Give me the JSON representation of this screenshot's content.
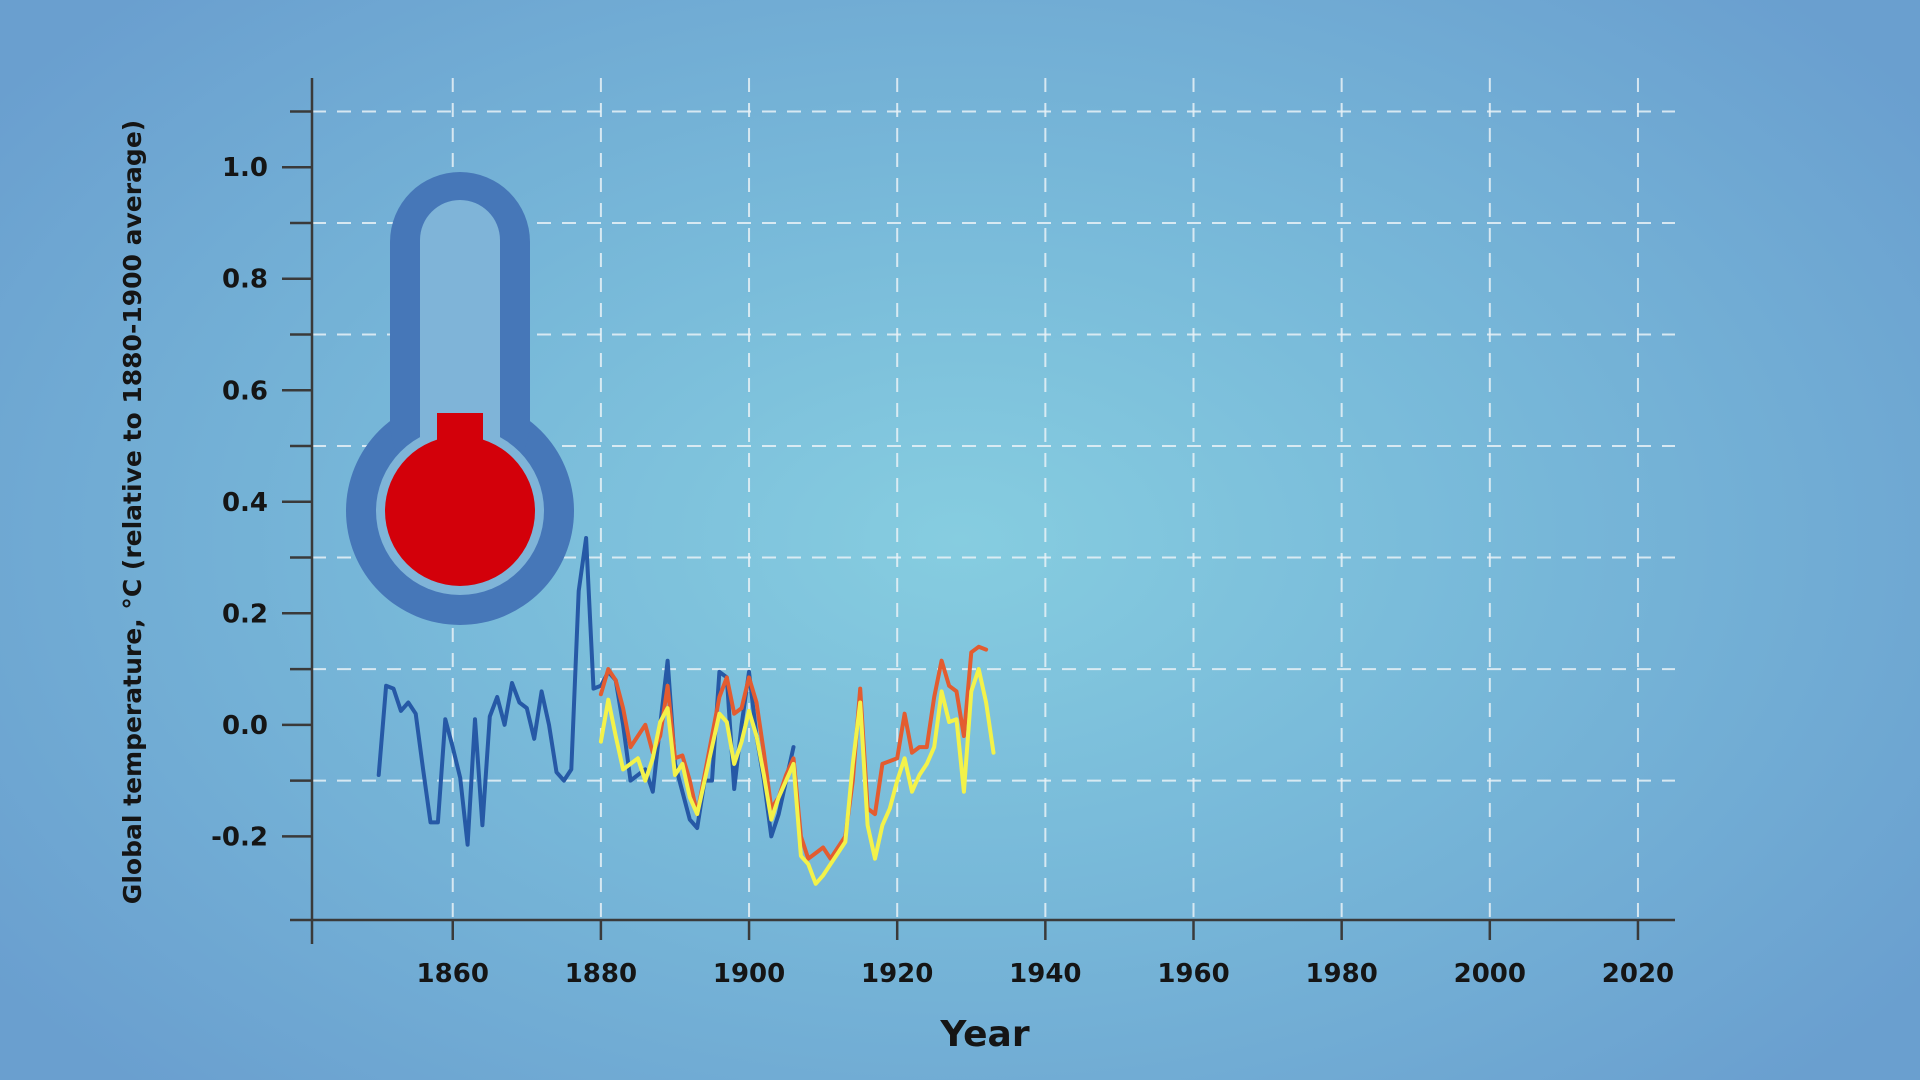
{
  "chart_data": {
    "type": "line",
    "title": "",
    "xlabel": "Year",
    "ylabel": "Global temperature, °C (relative to 1880-1900 average)",
    "xlim": [
      1841,
      2025
    ],
    "ylim": [
      -0.35,
      1.16
    ],
    "x_ticks": [
      1860,
      1880,
      1900,
      1920,
      1940,
      1960,
      1980,
      2000,
      2020
    ],
    "x_tick_labels": [
      "1860",
      "1880",
      "1900",
      "1920",
      "1940",
      "1960",
      "1980",
      "2000",
      "2020"
    ],
    "y_ticks": [
      -0.2,
      0.0,
      0.2,
      0.4,
      0.6,
      0.8,
      1.0
    ],
    "y_tick_labels": [
      "-0.2",
      "0.0",
      "0.2",
      "0.4",
      "0.6",
      "0.8",
      "1.0"
    ],
    "y_minor_ticks": [
      -0.1,
      0.1,
      0.3,
      0.5,
      0.7,
      0.9,
      1.1
    ],
    "grid": true,
    "series": [
      {
        "color": "#2659a6",
        "x": [
          1850,
          1851,
          1852,
          1853,
          1854,
          1855,
          1856,
          1857,
          1858,
          1859,
          1860,
          1861,
          1862,
          1863,
          1864,
          1865,
          1866,
          1867,
          1868,
          1869,
          1870,
          1871,
          1872,
          1873,
          1874,
          1875,
          1876,
          1877,
          1878,
          1879,
          1880,
          1881,
          1882,
          1883,
          1884,
          1885,
          1886,
          1887,
          1888,
          1889,
          1890,
          1891,
          1892,
          1893,
          1894,
          1895,
          1896,
          1897,
          1898,
          1899,
          1900,
          1901,
          1902,
          1903,
          1904,
          1905,
          1906
        ],
        "values": [
          -0.09,
          0.07,
          0.065,
          0.025,
          0.04,
          0.02,
          -0.08,
          -0.175,
          -0.175,
          0.01,
          -0.04,
          -0.095,
          -0.215,
          0.01,
          -0.18,
          0.015,
          0.05,
          0.0,
          0.075,
          0.04,
          0.03,
          -0.025,
          0.06,
          0.0,
          -0.085,
          -0.1,
          -0.08,
          0.24,
          0.335,
          0.065,
          0.07,
          0.095,
          0.08,
          0.0,
          -0.1,
          -0.09,
          -0.08,
          -0.12,
          0.0,
          0.115,
          -0.07,
          -0.12,
          -0.17,
          -0.185,
          -0.1,
          -0.1,
          0.095,
          0.085,
          -0.115,
          0.0,
          0.095,
          -0.02,
          -0.1,
          -0.2,
          -0.16,
          -0.1,
          -0.04
        ]
      },
      {
        "color": "#e35c30",
        "x": [
          1880,
          1881,
          1882,
          1883,
          1884,
          1885,
          1886,
          1887,
          1888,
          1889,
          1890,
          1891,
          1892,
          1893,
          1894,
          1895,
          1896,
          1897,
          1898,
          1899,
          1900,
          1901,
          1902,
          1903,
          1904,
          1905,
          1906,
          1907,
          1908,
          1909,
          1910,
          1911,
          1912,
          1913,
          1914,
          1915,
          1916,
          1917,
          1918,
          1919,
          1920,
          1921,
          1922,
          1923,
          1924,
          1925,
          1926,
          1927,
          1928,
          1929,
          1930,
          1931,
          1932
        ],
        "values": [
          0.055,
          0.1,
          0.08,
          0.03,
          -0.04,
          -0.02,
          0.0,
          -0.05,
          -0.02,
          0.07,
          -0.06,
          -0.055,
          -0.1,
          -0.16,
          -0.09,
          -0.02,
          0.05,
          0.085,
          0.02,
          0.03,
          0.085,
          0.04,
          -0.05,
          -0.15,
          -0.13,
          -0.09,
          -0.06,
          -0.2,
          -0.24,
          -0.23,
          -0.22,
          -0.24,
          -0.22,
          -0.2,
          -0.1,
          0.065,
          -0.15,
          -0.16,
          -0.07,
          -0.065,
          -0.06,
          0.02,
          -0.05,
          -0.04,
          -0.04,
          0.05,
          0.115,
          0.07,
          0.06,
          -0.02,
          0.13,
          0.14,
          0.135
        ]
      },
      {
        "color": "#f3f24a",
        "x": [
          1880,
          1881,
          1882,
          1883,
          1884,
          1885,
          1886,
          1887,
          1888,
          1889,
          1890,
          1891,
          1892,
          1893,
          1894,
          1895,
          1896,
          1897,
          1898,
          1899,
          1900,
          1901,
          1902,
          1903,
          1904,
          1905,
          1906,
          1907,
          1908,
          1909,
          1910,
          1911,
          1912,
          1913,
          1914,
          1915,
          1916,
          1917,
          1918,
          1919,
          1920,
          1921,
          1922,
          1923,
          1924,
          1925,
          1926,
          1927,
          1928,
          1929,
          1930,
          1931,
          1932,
          1933
        ],
        "values": [
          -0.03,
          0.045,
          -0.02,
          -0.08,
          -0.07,
          -0.06,
          -0.1,
          -0.06,
          0.005,
          0.03,
          -0.09,
          -0.07,
          -0.13,
          -0.16,
          -0.1,
          -0.04,
          0.02,
          0.005,
          -0.07,
          -0.03,
          0.025,
          -0.02,
          -0.09,
          -0.17,
          -0.13,
          -0.1,
          -0.07,
          -0.235,
          -0.25,
          -0.285,
          -0.27,
          -0.25,
          -0.23,
          -0.21,
          -0.07,
          0.04,
          -0.18,
          -0.24,
          -0.18,
          -0.15,
          -0.1,
          -0.06,
          -0.12,
          -0.09,
          -0.07,
          -0.04,
          0.06,
          0.005,
          0.01,
          -0.12,
          0.06,
          0.1,
          0.04,
          -0.05
        ]
      }
    ]
  },
  "thermometer": {
    "icon": "thermometer-icon",
    "tube_color": "#4677b8",
    "mercury_color": "#d3000a"
  }
}
